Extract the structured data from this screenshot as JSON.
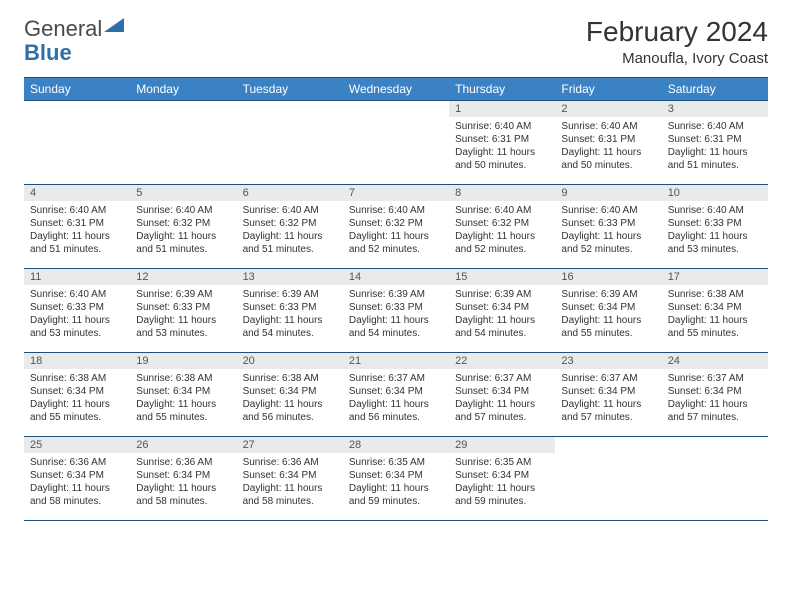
{
  "brand": {
    "name_gray": "General",
    "name_blue": "Blue"
  },
  "title": "February 2024",
  "location": "Manoufla, Ivory Coast",
  "colors": {
    "header_bg": "#3b82c4",
    "header_text": "#ffffff",
    "border": "#1f4e79",
    "daynum_bg": "#e9eaeb",
    "text": "#333333",
    "logo_blue": "#2f6fa8"
  },
  "weekdays": [
    "Sunday",
    "Monday",
    "Tuesday",
    "Wednesday",
    "Thursday",
    "Friday",
    "Saturday"
  ],
  "weeks": [
    [
      null,
      null,
      null,
      null,
      {
        "n": "1",
        "sr": "Sunrise: 6:40 AM",
        "ss": "Sunset: 6:31 PM",
        "dl1": "Daylight: 11 hours",
        "dl2": "and 50 minutes."
      },
      {
        "n": "2",
        "sr": "Sunrise: 6:40 AM",
        "ss": "Sunset: 6:31 PM",
        "dl1": "Daylight: 11 hours",
        "dl2": "and 50 minutes."
      },
      {
        "n": "3",
        "sr": "Sunrise: 6:40 AM",
        "ss": "Sunset: 6:31 PM",
        "dl1": "Daylight: 11 hours",
        "dl2": "and 51 minutes."
      }
    ],
    [
      {
        "n": "4",
        "sr": "Sunrise: 6:40 AM",
        "ss": "Sunset: 6:31 PM",
        "dl1": "Daylight: 11 hours",
        "dl2": "and 51 minutes."
      },
      {
        "n": "5",
        "sr": "Sunrise: 6:40 AM",
        "ss": "Sunset: 6:32 PM",
        "dl1": "Daylight: 11 hours",
        "dl2": "and 51 minutes."
      },
      {
        "n": "6",
        "sr": "Sunrise: 6:40 AM",
        "ss": "Sunset: 6:32 PM",
        "dl1": "Daylight: 11 hours",
        "dl2": "and 51 minutes."
      },
      {
        "n": "7",
        "sr": "Sunrise: 6:40 AM",
        "ss": "Sunset: 6:32 PM",
        "dl1": "Daylight: 11 hours",
        "dl2": "and 52 minutes."
      },
      {
        "n": "8",
        "sr": "Sunrise: 6:40 AM",
        "ss": "Sunset: 6:32 PM",
        "dl1": "Daylight: 11 hours",
        "dl2": "and 52 minutes."
      },
      {
        "n": "9",
        "sr": "Sunrise: 6:40 AM",
        "ss": "Sunset: 6:33 PM",
        "dl1": "Daylight: 11 hours",
        "dl2": "and 52 minutes."
      },
      {
        "n": "10",
        "sr": "Sunrise: 6:40 AM",
        "ss": "Sunset: 6:33 PM",
        "dl1": "Daylight: 11 hours",
        "dl2": "and 53 minutes."
      }
    ],
    [
      {
        "n": "11",
        "sr": "Sunrise: 6:40 AM",
        "ss": "Sunset: 6:33 PM",
        "dl1": "Daylight: 11 hours",
        "dl2": "and 53 minutes."
      },
      {
        "n": "12",
        "sr": "Sunrise: 6:39 AM",
        "ss": "Sunset: 6:33 PM",
        "dl1": "Daylight: 11 hours",
        "dl2": "and 53 minutes."
      },
      {
        "n": "13",
        "sr": "Sunrise: 6:39 AM",
        "ss": "Sunset: 6:33 PM",
        "dl1": "Daylight: 11 hours",
        "dl2": "and 54 minutes."
      },
      {
        "n": "14",
        "sr": "Sunrise: 6:39 AM",
        "ss": "Sunset: 6:33 PM",
        "dl1": "Daylight: 11 hours",
        "dl2": "and 54 minutes."
      },
      {
        "n": "15",
        "sr": "Sunrise: 6:39 AM",
        "ss": "Sunset: 6:34 PM",
        "dl1": "Daylight: 11 hours",
        "dl2": "and 54 minutes."
      },
      {
        "n": "16",
        "sr": "Sunrise: 6:39 AM",
        "ss": "Sunset: 6:34 PM",
        "dl1": "Daylight: 11 hours",
        "dl2": "and 55 minutes."
      },
      {
        "n": "17",
        "sr": "Sunrise: 6:38 AM",
        "ss": "Sunset: 6:34 PM",
        "dl1": "Daylight: 11 hours",
        "dl2": "and 55 minutes."
      }
    ],
    [
      {
        "n": "18",
        "sr": "Sunrise: 6:38 AM",
        "ss": "Sunset: 6:34 PM",
        "dl1": "Daylight: 11 hours",
        "dl2": "and 55 minutes."
      },
      {
        "n": "19",
        "sr": "Sunrise: 6:38 AM",
        "ss": "Sunset: 6:34 PM",
        "dl1": "Daylight: 11 hours",
        "dl2": "and 55 minutes."
      },
      {
        "n": "20",
        "sr": "Sunrise: 6:38 AM",
        "ss": "Sunset: 6:34 PM",
        "dl1": "Daylight: 11 hours",
        "dl2": "and 56 minutes."
      },
      {
        "n": "21",
        "sr": "Sunrise: 6:37 AM",
        "ss": "Sunset: 6:34 PM",
        "dl1": "Daylight: 11 hours",
        "dl2": "and 56 minutes."
      },
      {
        "n": "22",
        "sr": "Sunrise: 6:37 AM",
        "ss": "Sunset: 6:34 PM",
        "dl1": "Daylight: 11 hours",
        "dl2": "and 57 minutes."
      },
      {
        "n": "23",
        "sr": "Sunrise: 6:37 AM",
        "ss": "Sunset: 6:34 PM",
        "dl1": "Daylight: 11 hours",
        "dl2": "and 57 minutes."
      },
      {
        "n": "24",
        "sr": "Sunrise: 6:37 AM",
        "ss": "Sunset: 6:34 PM",
        "dl1": "Daylight: 11 hours",
        "dl2": "and 57 minutes."
      }
    ],
    [
      {
        "n": "25",
        "sr": "Sunrise: 6:36 AM",
        "ss": "Sunset: 6:34 PM",
        "dl1": "Daylight: 11 hours",
        "dl2": "and 58 minutes."
      },
      {
        "n": "26",
        "sr": "Sunrise: 6:36 AM",
        "ss": "Sunset: 6:34 PM",
        "dl1": "Daylight: 11 hours",
        "dl2": "and 58 minutes."
      },
      {
        "n": "27",
        "sr": "Sunrise: 6:36 AM",
        "ss": "Sunset: 6:34 PM",
        "dl1": "Daylight: 11 hours",
        "dl2": "and 58 minutes."
      },
      {
        "n": "28",
        "sr": "Sunrise: 6:35 AM",
        "ss": "Sunset: 6:34 PM",
        "dl1": "Daylight: 11 hours",
        "dl2": "and 59 minutes."
      },
      {
        "n": "29",
        "sr": "Sunrise: 6:35 AM",
        "ss": "Sunset: 6:34 PM",
        "dl1": "Daylight: 11 hours",
        "dl2": "and 59 minutes."
      },
      null,
      null
    ]
  ]
}
